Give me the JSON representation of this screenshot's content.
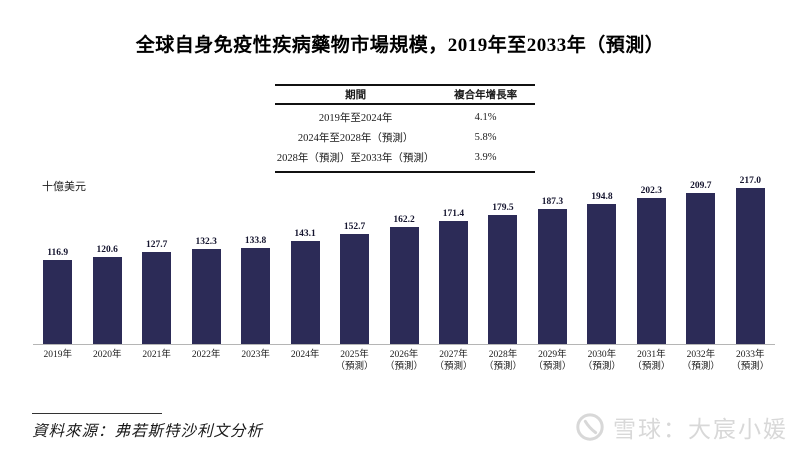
{
  "title": "全球自身免疫性疾病藥物市場規模，2019年至2033年（預測）",
  "cagr_table": {
    "headers": [
      "期間",
      "複合年增長率"
    ],
    "rows": [
      {
        "period": "2019年至2024年",
        "cagr": "4.1%"
      },
      {
        "period": "2024年至2028年（預測）",
        "cagr": "5.8%"
      },
      {
        "period": "2028年（預測）至2033年（預測）",
        "cagr": "3.9%"
      }
    ]
  },
  "chart_data": {
    "type": "bar",
    "title": "全球自身免疫性疾病藥物市場規模，2019年至2033年（預測）",
    "ylabel": "十億美元",
    "xlabel": "",
    "ylim": [
      0,
      230
    ],
    "grid": false,
    "bar_color": "#2c2b57",
    "categories": [
      "2019年",
      "2020年",
      "2021年",
      "2022年",
      "2023年",
      "2024年",
      "2025年",
      "2026年",
      "2027年",
      "2028年",
      "2029年",
      "2030年",
      "2031年",
      "2032年",
      "2033年"
    ],
    "category_notes": [
      "",
      "",
      "",
      "",
      "",
      "",
      "（預測）",
      "（預測）",
      "（預測）",
      "（預測）",
      "（預測）",
      "（預測）",
      "（預測）",
      "（預測）",
      "（預測）"
    ],
    "values": [
      116.9,
      120.6,
      127.7,
      132.3,
      133.8,
      143.1,
      152.7,
      162.2,
      171.4,
      179.5,
      187.3,
      194.8,
      202.3,
      209.7,
      217.0
    ]
  },
  "source": "資料來源：弗若斯特沙利文分析",
  "watermark": {
    "icon": "xueqiu-snowball-logo",
    "text": "雪球：大宸小媛"
  }
}
